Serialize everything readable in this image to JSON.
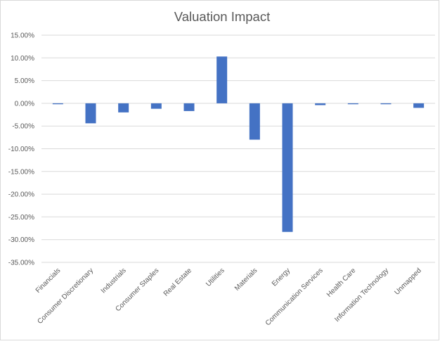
{
  "chart_data": {
    "type": "bar",
    "title": "Valuation Impact",
    "xlabel": "",
    "ylabel": "",
    "ylim": [
      -0.35,
      0.15
    ],
    "ytick_step": 0.05,
    "grid": true,
    "bar_color": "#4472c4",
    "grid_color": "#d9d9d9",
    "categories": [
      "Financials",
      "Consumer Discretionary",
      "Industrials",
      "Consumer Staples",
      "Real Estate",
      "Utilities",
      "Materials",
      "Energy",
      "Communication Services",
      "Health Care",
      "Information Technology",
      "Unmapped"
    ],
    "values": [
      -0.002,
      -0.044,
      -0.02,
      -0.012,
      -0.017,
      0.103,
      -0.08,
      -0.283,
      -0.004,
      -0.002,
      -0.002,
      -0.01
    ],
    "ytick_labels": [
      "15.00%",
      "10.00%",
      "5.00%",
      "0.00%",
      "-5.00%",
      "-10.00%",
      "-15.00%",
      "-20.00%",
      "-25.00%",
      "-30.00%",
      "-35.00%"
    ]
  }
}
